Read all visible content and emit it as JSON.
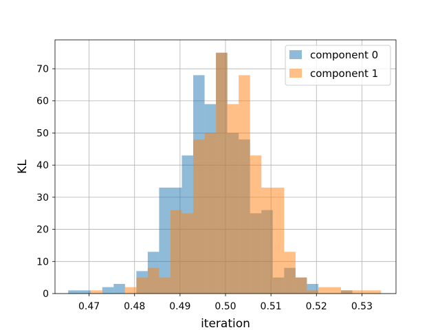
{
  "chart_data": {
    "type": "histogram",
    "xlabel": "iteration",
    "ylabel": "KL",
    "xlim": [
      0.4625,
      0.5375
    ],
    "ylim": [
      0,
      79
    ],
    "xticks": [
      0.47,
      0.48,
      0.49,
      0.5,
      0.51,
      0.52,
      0.53
    ],
    "xtick_labels": [
      "0.47",
      "0.48",
      "0.49",
      "0.50",
      "0.51",
      "0.52",
      "0.53"
    ],
    "yticks": [
      0,
      10,
      20,
      30,
      40,
      50,
      60,
      70
    ],
    "ytick_labels": [
      "0",
      "10",
      "20",
      "30",
      "40",
      "50",
      "60",
      "70"
    ],
    "grid": true,
    "legend_position": "top-right",
    "series": [
      {
        "name": "component 0",
        "color": "#1f77b4",
        "alpha": 0.5,
        "bin_edges": [
          0.4654,
          0.4679,
          0.4704,
          0.4729,
          0.4754,
          0.4779,
          0.4804,
          0.4829,
          0.4854,
          0.4879,
          0.4904,
          0.4929,
          0.4954,
          0.4979,
          0.5004,
          0.5029,
          0.5054,
          0.5079,
          0.5104,
          0.5129,
          0.5154,
          0.5179,
          0.5204,
          0.5229,
          0.5254,
          0.5279,
          0.5304
        ],
        "counts": [
          1,
          1,
          0,
          2,
          3,
          0,
          7,
          13,
          33,
          33,
          43,
          68,
          59,
          75,
          50,
          48,
          25,
          26,
          5,
          8,
          5,
          3,
          0,
          0,
          1,
          0
        ]
      },
      {
        "name": "component 1",
        "color": "#ff7f0e",
        "alpha": 0.5,
        "bin_edges": [
          0.4704,
          0.4729,
          0.4754,
          0.4779,
          0.4804,
          0.4829,
          0.4854,
          0.4879,
          0.4904,
          0.4929,
          0.4954,
          0.4979,
          0.5004,
          0.5029,
          0.5054,
          0.5079,
          0.5104,
          0.5129,
          0.5154,
          0.5179,
          0.5204,
          0.5229,
          0.5254,
          0.5279,
          0.5304,
          0.5329,
          0.5342
        ],
        "counts": [
          1,
          0,
          0,
          2,
          5,
          8,
          5,
          26,
          25,
          48,
          50,
          75,
          59,
          68,
          43,
          33,
          33,
          13,
          5,
          1,
          2,
          2,
          1,
          1,
          1,
          1
        ]
      }
    ]
  }
}
